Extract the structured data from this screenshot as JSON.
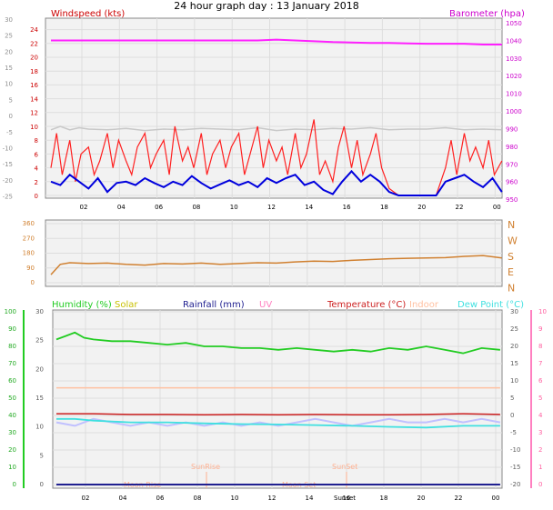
{
  "title": "24 hour graph day : 13 January 2018",
  "colors": {
    "wind_avg": "#0000dd",
    "wind_gust": "#ff2020",
    "wind_hidden": "#c8c8c8",
    "barometer": "#ff20ff",
    "direction": "#d08030",
    "humidity": "#22cc22",
    "solar": "#c8c000",
    "rainfall": "#202090",
    "uv": "#ff80c0",
    "temperature": "#cc2020",
    "indoor": "#ffc0a0",
    "dewpoint": "#40e0e0",
    "app_temp": "#c0c0ff",
    "sun_text": "#ffb090",
    "grid": "#dddddd",
    "plot_bg": "#f2f2f2"
  },
  "chart_data": [
    {
      "type": "line",
      "panel": "wind_baro",
      "x_ticks": [
        "02",
        "04",
        "06",
        "08",
        "10",
        "12",
        "14",
        "16",
        "18",
        "20",
        "22",
        "00"
      ],
      "left_label": "Windspeed (kts)",
      "right_label": "Barometer (hpa)",
      "left_ticks": [
        "24",
        "22",
        "20",
        "18",
        "16",
        "14",
        "12",
        "10",
        "8",
        "6",
        "4",
        "2",
        "0"
      ],
      "left_ticks_grey": [
        "30",
        "25",
        "20",
        "15",
        "10",
        "5",
        "0",
        "-5",
        "-10",
        "-15",
        "-20",
        "-25"
      ],
      "right_ticks": [
        "1050",
        "1040",
        "1030",
        "1020",
        "1010",
        "1000",
        "990",
        "980",
        "970",
        "960",
        "950"
      ],
      "ylim_left": [
        0,
        25
      ],
      "ylim_right": [
        945,
        1052
      ],
      "grid": true,
      "series": [
        {
          "name": "Barometer (hpa)",
          "axis": "right",
          "x": [
            0,
            1,
            2,
            3,
            4,
            5,
            6,
            7,
            8,
            9,
            10,
            11,
            12,
            13,
            14,
            15,
            16,
            17,
            18,
            19,
            20,
            21,
            22,
            23,
            24
          ],
          "values": [
            1041,
            1041,
            1041,
            1041,
            1041,
            1041,
            1041,
            1041,
            1041,
            1041,
            1041,
            1041,
            1041.5,
            1041,
            1040.5,
            1040,
            1039.8,
            1039.5,
            1039.5,
            1039.2,
            1039,
            1039,
            1039,
            1038.5,
            1038.5
          ]
        },
        {
          "name": "wind-hidden",
          "axis": "left",
          "x": [
            0,
            0.5,
            1,
            1.5,
            2,
            3,
            4,
            5,
            6,
            7,
            8,
            9,
            10,
            11,
            12,
            13,
            14,
            15,
            16,
            17,
            18,
            19,
            20,
            21,
            22,
            23,
            24
          ],
          "values": [
            9.5,
            10,
            9.5,
            9.8,
            9.6,
            9.5,
            9.7,
            9.4,
            9.6,
            9.5,
            9.7,
            9.6,
            9.5,
            9.8,
            9.4,
            9.6,
            9.5,
            9.7,
            9.6,
            9.8,
            9.5,
            9.6,
            9.6,
            9.8,
            9.5,
            9.6,
            9.5
          ]
        },
        {
          "name": "wind-gust",
          "axis": "left",
          "x": [
            0,
            0.3,
            0.6,
            1,
            1.3,
            1.6,
            2,
            2.3,
            2.6,
            3,
            3.3,
            3.6,
            4,
            4.3,
            4.6,
            5,
            5.3,
            5.6,
            6,
            6.3,
            6.6,
            7,
            7.3,
            7.6,
            8,
            8.3,
            8.6,
            9,
            9.3,
            9.6,
            10,
            10.3,
            10.6,
            11,
            11.3,
            11.6,
            12,
            12.3,
            12.6,
            13,
            13.3,
            13.6,
            14,
            14.3,
            14.6,
            15,
            15.3,
            15.6,
            16,
            16.3,
            16.6,
            17,
            17.3,
            17.6,
            18,
            18.5,
            19,
            19.5,
            20,
            20.5,
            21,
            21.3,
            21.6,
            22,
            22.3,
            22.6,
            23,
            23.3,
            23.6,
            24
          ],
          "values": [
            4,
            9,
            3,
            8,
            2,
            6,
            7,
            3,
            5,
            9,
            4,
            8,
            5,
            3,
            7,
            9,
            4,
            6,
            8,
            3,
            10,
            5,
            7,
            4,
            9,
            3,
            6,
            8,
            4,
            7,
            9,
            3,
            6,
            10,
            4,
            8,
            5,
            7,
            3,
            9,
            4,
            6,
            11,
            3,
            5,
            2,
            7,
            10,
            4,
            8,
            3,
            6,
            9,
            4,
            1,
            0,
            0,
            0,
            0,
            0,
            4,
            8,
            3,
            9,
            5,
            7,
            4,
            8,
            3,
            5
          ]
        },
        {
          "name": "wind-avg",
          "axis": "left",
          "x": [
            0,
            0.5,
            1,
            1.5,
            2,
            2.5,
            3,
            3.5,
            4,
            4.5,
            5,
            5.5,
            6,
            6.5,
            7,
            7.5,
            8,
            8.5,
            9,
            9.5,
            10,
            10.5,
            11,
            11.5,
            12,
            12.5,
            13,
            13.5,
            14,
            14.5,
            15,
            15.5,
            16,
            16.5,
            17,
            17.5,
            18,
            18.5,
            19,
            19.5,
            20,
            20.5,
            21,
            21.5,
            22,
            22.5,
            23,
            23.5,
            24
          ],
          "values": [
            2,
            1.5,
            3,
            2,
            1,
            2.5,
            0.5,
            1.8,
            2,
            1.5,
            2.5,
            1.8,
            1.2,
            2,
            1.5,
            2.8,
            1.8,
            1,
            1.6,
            2.2,
            1.5,
            2,
            1.2,
            2.5,
            1.8,
            2.5,
            3,
            1.5,
            2,
            0.8,
            0.2,
            2,
            3.5,
            2,
            3,
            2,
            0.5,
            0,
            0,
            0,
            0,
            0,
            2,
            2.5,
            3,
            2,
            1.2,
            2.5,
            0.5
          ]
        }
      ]
    },
    {
      "type": "line",
      "panel": "direction",
      "x_ticks": [
        "02",
        "04",
        "06",
        "08",
        "10",
        "12",
        "14",
        "16",
        "18",
        "20",
        "22",
        "00"
      ],
      "left_ticks": [
        "360",
        "270",
        "180",
        "90",
        "0"
      ],
      "right_labels": [
        "N",
        "W",
        "S",
        "E",
        "N"
      ],
      "ylim": [
        0,
        360
      ],
      "grid": true,
      "series": [
        {
          "name": "direction",
          "x": [
            0,
            0.5,
            1,
            2,
            3,
            4,
            5,
            6,
            7,
            8,
            9,
            10,
            11,
            12,
            13,
            14,
            15,
            16,
            17,
            18,
            19,
            20,
            21,
            22,
            23,
            24
          ],
          "values": [
            45,
            110,
            120,
            115,
            118,
            110,
            105,
            115,
            112,
            118,
            110,
            115,
            120,
            118,
            125,
            130,
            128,
            135,
            140,
            145,
            148,
            150,
            152,
            160,
            165,
            150
          ]
        }
      ]
    },
    {
      "type": "line",
      "panel": "multi",
      "x_ticks": [
        "02",
        "04",
        "06",
        "08",
        "10",
        "12",
        "14",
        "16",
        "18",
        "20",
        "22",
        "00"
      ],
      "header_labels": [
        "Humidity (%)",
        "Solar",
        "Rainfall (mm)",
        "UV",
        "Temperature (°C)",
        "Indoor",
        "Dew Point (°C)"
      ],
      "left_ticks": [
        "100",
        "90",
        "80",
        "70",
        "60",
        "50",
        "40",
        "30",
        "20",
        "10",
        "0"
      ],
      "left_ticks_2": [
        "30",
        "25",
        "20",
        "15",
        "10",
        "5",
        "0"
      ],
      "right_ticks": [
        "30",
        "25",
        "20",
        "15",
        "10",
        "5",
        "0",
        "-5",
        "-10",
        "-15",
        "-20"
      ],
      "right_ticks_2": [
        "10",
        "9",
        "8",
        "7",
        "6",
        "5",
        "4",
        "3",
        "2",
        "1",
        "0"
      ],
      "ylim_left": [
        0,
        100
      ],
      "ylim_right": [
        -20,
        30
      ],
      "grid": true,
      "annotations": [
        "SunRise",
        "SunSet",
        "Moon Rise",
        "Moon Set",
        "Sunset"
      ],
      "series": [
        {
          "name": "Humidity (%)",
          "axis": "left",
          "x": [
            0,
            0.5,
            1,
            1.5,
            2,
            3,
            4,
            5,
            6,
            7,
            8,
            9,
            10,
            11,
            12,
            13,
            14,
            15,
            16,
            17,
            18,
            19,
            20,
            21,
            22,
            23,
            24
          ],
          "values": [
            84,
            86,
            88,
            85,
            84,
            83,
            83,
            82,
            81,
            82,
            80,
            80,
            79,
            79,
            78,
            79,
            78,
            77,
            78,
            77,
            79,
            78,
            80,
            78,
            76,
            79,
            78
          ]
        },
        {
          "name": "Indoor",
          "axis": "right",
          "x": [
            0,
            24
          ],
          "values": [
            8,
            8
          ]
        },
        {
          "name": "Temperature (°C)",
          "axis": "right",
          "x": [
            0,
            2,
            4,
            6,
            8,
            10,
            12,
            14,
            16,
            18,
            20,
            22,
            24
          ],
          "values": [
            0.5,
            0.5,
            0.3,
            0.3,
            0.2,
            0.3,
            0.2,
            0.3,
            0.2,
            0.2,
            0.3,
            0.5,
            0.3
          ]
        },
        {
          "name": "app-temp",
          "axis": "right",
          "x": [
            0,
            1,
            2,
            3,
            4,
            5,
            6,
            7,
            8,
            9,
            10,
            11,
            12,
            13,
            14,
            15,
            16,
            17,
            18,
            19,
            20,
            21,
            22,
            23,
            24
          ],
          "values": [
            -2,
            -3,
            -1,
            -2,
            -3,
            -2,
            -3,
            -2,
            -3,
            -2,
            -3,
            -2,
            -3,
            -2,
            -1,
            -2,
            -3,
            -2,
            -1,
            -2,
            -2,
            -1,
            -2,
            -1,
            -2
          ]
        },
        {
          "name": "Dew Point (°C)",
          "axis": "right",
          "x": [
            0,
            1,
            2,
            4,
            6,
            8,
            10,
            12,
            14,
            16,
            18,
            20,
            22,
            24
          ],
          "values": [
            -1,
            -1,
            -1.5,
            -2,
            -2,
            -2.3,
            -2.5,
            -2.6,
            -2.8,
            -3,
            -3.3,
            -3.5,
            -3,
            -3
          ]
        },
        {
          "name": "Rainfall (mm)",
          "axis": "left",
          "x": [
            0,
            24
          ],
          "values": [
            0,
            0
          ]
        }
      ]
    }
  ]
}
